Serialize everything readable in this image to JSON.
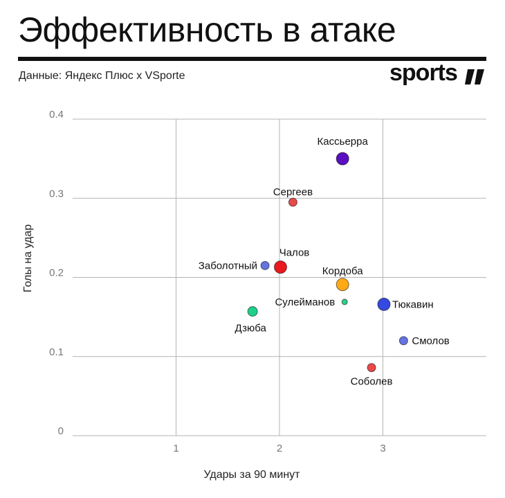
{
  "header": {
    "title": "Эффективность в атаке",
    "source": "Данные: Яндекс Плюс x VSporte",
    "logo_text": "sports"
  },
  "chart_data": {
    "type": "scatter",
    "title": "Эффективность в атаке",
    "xlabel": "Удары за 90 минут",
    "ylabel": "Голы на удар",
    "xlim": [
      0,
      4
    ],
    "ylim": [
      0,
      0.4
    ],
    "x_ticks": [
      "1",
      "2",
      "3"
    ],
    "y_ticks": [
      "0",
      "0.1",
      "0.2",
      "0.3",
      "0.4"
    ],
    "grid": true,
    "points": [
      {
        "label": "Кассьерра",
        "x": 2.61,
        "y": 0.35,
        "color": "#5a0fc0",
        "size": "large"
      },
      {
        "label": "Сергеев",
        "x": 2.13,
        "y": 0.295,
        "color": "#e84a4a",
        "size": "small"
      },
      {
        "label": "Чалов",
        "x": 2.01,
        "y": 0.213,
        "color": "#e8191f",
        "size": "large"
      },
      {
        "label": "Заболотный",
        "x": 1.86,
        "y": 0.215,
        "color": "#6474e0",
        "size": "small"
      },
      {
        "label": "Кордоба",
        "x": 2.61,
        "y": 0.191,
        "color": "#ffaa14",
        "size": "large"
      },
      {
        "label": "Сулейманов",
        "x": 2.63,
        "y": 0.169,
        "color": "#2ecf85",
        "size": "tiny"
      },
      {
        "label": "Тюкавин",
        "x": 3.01,
        "y": 0.166,
        "color": "#3548e0",
        "size": "large"
      },
      {
        "label": "Дзюба",
        "x": 1.74,
        "y": 0.157,
        "color": "#1ed089",
        "size": "medium"
      },
      {
        "label": "Смолов",
        "x": 3.2,
        "y": 0.12,
        "color": "#6474e0",
        "size": "small"
      },
      {
        "label": "Соболев",
        "x": 2.89,
        "y": 0.086,
        "color": "#e84a4a",
        "size": "small"
      }
    ]
  }
}
